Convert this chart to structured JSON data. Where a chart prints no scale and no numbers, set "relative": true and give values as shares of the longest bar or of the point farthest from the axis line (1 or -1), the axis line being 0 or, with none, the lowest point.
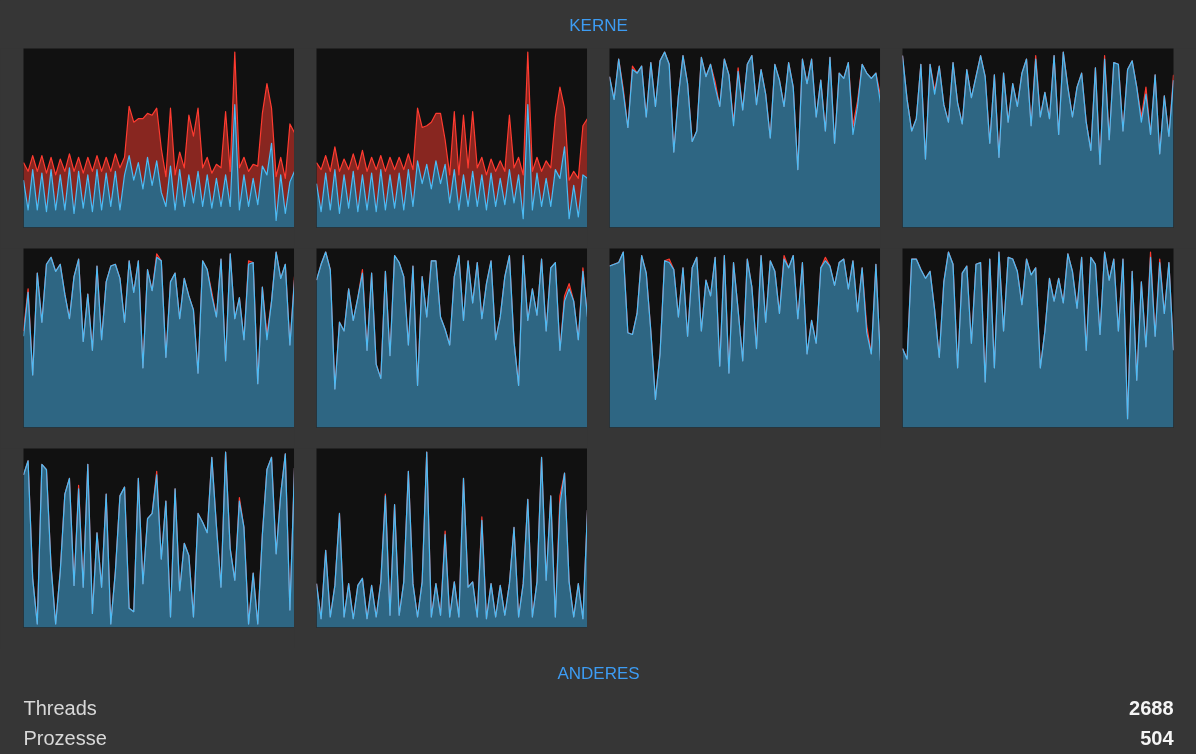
{
  "chart_data": [
    {
      "type": "other",
      "title": "KERNE"
    },
    {
      "type": "area",
      "stacked": true,
      "relative": true,
      "categories": [
        null,
        null,
        null,
        null,
        null,
        null,
        null,
        null,
        null,
        null,
        null,
        null,
        null,
        null,
        null,
        null,
        null,
        null,
        null,
        null,
        null,
        null,
        null,
        null,
        null,
        null,
        null,
        null,
        null,
        null,
        null,
        null,
        null,
        null,
        null,
        null,
        null,
        null,
        null,
        null,
        null,
        null,
        null,
        null,
        null,
        null,
        null,
        null,
        null,
        null,
        null,
        null,
        null,
        null,
        null,
        null,
        null,
        null,
        null,
        null
      ],
      "series": [
        {
          "color": "#4cbcf5",
          "values": [
            0.27,
            0.1,
            0.33,
            0.1,
            0.31,
            0.09,
            0.33,
            0.1,
            0.3,
            0.1,
            0.34,
            0.08,
            0.32,
            0.11,
            0.3,
            0.09,
            0.33,
            0.1,
            0.31,
            0.12,
            0.32,
            0.1,
            0.3,
            0.41,
            0.27,
            0.37,
            0.22,
            0.4,
            0.24,
            0.38,
            0.2,
            0.12,
            0.35,
            0.1,
            0.33,
            0.12,
            0.3,
            0.14,
            0.32,
            0.12,
            0.3,
            0.11,
            0.28,
            0.12,
            0.3,
            0.12,
            0.7,
            0.1,
            0.3,
            0.12,
            0.28,
            0.13,
            0.35,
            0.3,
            0.48,
            0.04,
            0.3,
            0.08,
            0.26,
            0.32
          ]
        },
        {
          "color": "#ff3b30",
          "values": [
            0.1,
            0.22,
            0.08,
            0.22,
            0.1,
            0.22,
            0.07,
            0.2,
            0.09,
            0.22,
            0.08,
            0.24,
            0.08,
            0.2,
            0.1,
            0.23,
            0.08,
            0.22,
            0.09,
            0.2,
            0.1,
            0.24,
            0.1,
            0.28,
            0.33,
            0.25,
            0.4,
            0.25,
            0.4,
            0.3,
            0.25,
            0.17,
            0.33,
            0.2,
            0.1,
            0.22,
            0.34,
            0.38,
            0.36,
            0.22,
            0.1,
            0.2,
            0.08,
            0.22,
            0.36,
            0.2,
            0.3,
            0.24,
            0.1,
            0.2,
            0.08,
            0.22,
            0.3,
            0.52,
            0.2,
            0.25,
            0.1,
            0.2,
            0.33,
            0.22
          ]
        }
      ]
    },
    {
      "type": "area",
      "stacked": true,
      "relative": true,
      "categories": [
        null,
        null,
        null,
        null,
        null,
        null,
        null,
        null,
        null,
        null,
        null,
        null,
        null,
        null,
        null,
        null,
        null,
        null,
        null,
        null,
        null,
        null,
        null,
        null,
        null,
        null,
        null,
        null,
        null,
        null,
        null,
        null,
        null,
        null,
        null,
        null,
        null,
        null,
        null,
        null,
        null,
        null,
        null,
        null,
        null,
        null,
        null,
        null,
        null,
        null,
        null,
        null,
        null,
        null,
        null,
        null,
        null,
        null,
        null,
        null
      ],
      "series": [
        {
          "color": "#4cbcf5",
          "values": [
            0.25,
            0.09,
            0.31,
            0.1,
            0.33,
            0.08,
            0.3,
            0.11,
            0.32,
            0.09,
            0.3,
            0.1,
            0.31,
            0.09,
            0.33,
            0.1,
            0.3,
            0.11,
            0.31,
            0.1,
            0.33,
            0.12,
            0.38,
            0.25,
            0.36,
            0.22,
            0.38,
            0.25,
            0.36,
            0.14,
            0.33,
            0.1,
            0.3,
            0.12,
            0.32,
            0.12,
            0.3,
            0.1,
            0.31,
            0.12,
            0.28,
            0.13,
            0.33,
            0.14,
            0.3,
            0.05,
            0.7,
            0.1,
            0.31,
            0.12,
            0.28,
            0.12,
            0.33,
            0.28,
            0.46,
            0.05,
            0.24,
            0.06,
            0.3,
            0.28
          ]
        },
        {
          "color": "#ff3b30",
          "values": [
            0.12,
            0.24,
            0.1,
            0.22,
            0.13,
            0.24,
            0.09,
            0.22,
            0.1,
            0.24,
            0.14,
            0.22,
            0.09,
            0.24,
            0.08,
            0.22,
            0.1,
            0.22,
            0.09,
            0.23,
            0.09,
            0.21,
            0.3,
            0.32,
            0.22,
            0.38,
            0.27,
            0.4,
            0.14,
            0.16,
            0.33,
            0.2,
            0.34,
            0.22,
            0.34,
            0.22,
            0.1,
            0.2,
            0.08,
            0.2,
            0.1,
            0.19,
            0.31,
            0.2,
            0.1,
            0.25,
            0.3,
            0.22,
            0.09,
            0.2,
            0.1,
            0.22,
            0.3,
            0.52,
            0.22,
            0.22,
            0.08,
            0.22,
            0.28,
            0.34
          ]
        }
      ]
    },
    {
      "type": "area",
      "stacked": true,
      "relative": true,
      "categories": [
        null,
        null,
        null,
        null,
        null,
        null,
        null,
        null,
        null,
        null,
        null,
        null,
        null,
        null,
        null,
        null,
        null,
        null,
        null,
        null,
        null,
        null,
        null,
        null,
        null,
        null,
        null,
        null,
        null,
        null,
        null,
        null,
        null,
        null,
        null,
        null,
        null,
        null,
        null,
        null,
        null,
        null,
        null,
        null,
        null,
        null,
        null,
        null,
        null,
        null,
        null,
        null,
        null,
        null,
        null,
        null,
        null,
        null,
        null,
        null
      ],
      "series": [
        {
          "color": "#4cbcf5",
          "values": [
            0.86,
            0.73,
            0.96,
            0.77,
            0.57,
            0.9,
            0.88,
            0.92,
            0.63,
            0.94,
            0.69,
            0.95,
            1.0,
            0.93,
            0.43,
            0.75,
            0.98,
            0.82,
            0.49,
            0.55,
            0.97,
            0.86,
            0.93,
            0.8,
            0.69,
            0.96,
            0.87,
            0.58,
            0.89,
            0.67,
            0.93,
            0.98,
            0.7,
            0.9,
            0.76,
            0.51,
            0.93,
            0.84,
            0.69,
            0.94,
            0.8,
            0.33,
            0.96,
            0.82,
            0.96,
            0.63,
            0.84,
            0.55,
            0.97,
            0.48,
            0.88,
            0.85,
            0.94,
            0.53,
            0.69,
            0.93,
            0.88,
            0.85,
            0.88,
            0.71
          ]
        },
        {
          "color": "#ff3b30",
          "values": [
            0,
            0,
            0,
            0.02,
            0,
            0.02,
            0,
            0,
            0,
            0,
            0,
            0,
            0,
            0,
            0,
            0,
            0,
            0,
            0,
            0,
            0,
            0,
            0,
            0.03,
            0,
            0,
            0,
            0.02,
            0.02,
            0,
            0,
            0,
            0,
            0,
            0,
            0,
            0,
            0,
            0,
            0,
            0,
            0,
            0,
            0,
            0,
            0,
            0,
            0,
            0,
            0,
            0,
            0,
            0,
            0.05,
            0.03,
            0,
            0,
            0,
            0,
            0.04
          ]
        }
      ]
    },
    {
      "type": "area",
      "stacked": true,
      "relative": true,
      "categories": [
        null,
        null,
        null,
        null,
        null,
        null,
        null,
        null,
        null,
        null,
        null,
        null,
        null,
        null,
        null,
        null,
        null,
        null,
        null,
        null,
        null,
        null,
        null,
        null,
        null,
        null,
        null,
        null,
        null,
        null,
        null,
        null,
        null,
        null,
        null,
        null,
        null,
        null,
        null,
        null,
        null,
        null,
        null,
        null,
        null,
        null,
        null,
        null,
        null,
        null,
        null,
        null,
        null,
        null,
        null,
        null,
        null,
        null,
        null,
        null
      ],
      "series": [
        {
          "color": "#4cbcf5",
          "values": [
            0.98,
            0.73,
            0.55,
            0.62,
            0.93,
            0.39,
            0.93,
            0.76,
            0.92,
            0.7,
            0.6,
            0.94,
            0.71,
            0.59,
            0.9,
            0.74,
            0.86,
            0.98,
            0.86,
            0.48,
            0.87,
            0.4,
            0.88,
            0.6,
            0.82,
            0.69,
            0.88,
            0.96,
            0.58,
            0.96,
            0.63,
            0.77,
            0.62,
            0.98,
            0.53,
            1.0,
            0.8,
            0.63,
            0.8,
            0.88,
            0.6,
            0.44,
            0.91,
            0.36,
            0.96,
            0.5,
            0.94,
            0.93,
            0.55,
            0.9,
            0.95,
            0.8,
            0.6,
            0.76,
            0.53,
            0.87,
            0.42,
            0.75,
            0.52,
            0.84
          ]
        },
        {
          "color": "#ff3b30",
          "values": [
            0,
            0,
            0,
            0,
            0,
            0,
            0,
            0.02,
            0,
            0,
            0,
            0,
            0,
            0,
            0,
            0,
            0,
            0,
            0,
            0,
            0,
            0,
            0,
            0,
            0,
            0,
            0,
            0,
            0,
            0.02,
            0,
            0,
            0,
            0,
            0,
            0,
            0,
            0,
            0,
            0,
            0,
            0,
            0,
            0,
            0.02,
            0,
            0,
            0,
            0,
            0,
            0,
            0,
            0.03,
            0.04,
            0,
            0,
            0,
            0,
            0,
            0.03
          ]
        }
      ]
    },
    {
      "type": "area",
      "stacked": true,
      "relative": true,
      "categories": [
        null,
        null,
        null,
        null,
        null,
        null,
        null,
        null,
        null,
        null,
        null,
        null,
        null,
        null,
        null,
        null,
        null,
        null,
        null,
        null,
        null,
        null,
        null,
        null,
        null,
        null,
        null,
        null,
        null,
        null,
        null,
        null,
        null,
        null,
        null,
        null,
        null,
        null,
        null,
        null,
        null,
        null,
        null,
        null,
        null,
        null,
        null,
        null,
        null,
        null,
        null,
        null,
        null,
        null,
        null,
        null,
        null,
        null,
        null,
        null
      ],
      "series": [
        {
          "color": "#4cbcf5",
          "values": [
            0.52,
            0.77,
            0.3,
            0.88,
            0.6,
            0.93,
            0.97,
            0.89,
            0.93,
            0.76,
            0.62,
            0.86,
            0.96,
            0.49,
            0.76,
            0.44,
            0.92,
            0.5,
            0.83,
            0.92,
            0.93,
            0.85,
            0.6,
            0.95,
            0.77,
            0.95,
            0.34,
            0.9,
            0.78,
            0.97,
            0.95,
            0.4,
            0.83,
            0.88,
            0.62,
            0.85,
            0.75,
            0.67,
            0.31,
            0.95,
            0.9,
            0.75,
            0.63,
            0.96,
            0.38,
            0.99,
            0.62,
            0.74,
            0.5,
            0.93,
            0.94,
            0.25,
            0.8,
            0.5,
            0.72,
            1.0,
            0.85,
            0.93,
            0.47,
            0.84
          ]
        },
        {
          "color": "#ff3b30",
          "values": [
            0.03,
            0.02,
            0,
            0,
            0,
            0,
            0,
            0,
            0,
            0,
            0,
            0,
            0,
            0,
            0,
            0,
            0,
            0,
            0,
            0,
            0,
            0,
            0,
            0,
            0,
            0,
            0,
            0,
            0,
            0.02,
            0,
            0,
            0,
            0,
            0,
            0,
            0,
            0,
            0,
            0,
            0,
            0.02,
            0,
            0,
            0,
            0,
            0,
            0,
            0,
            0.02,
            0,
            0,
            0,
            0.03,
            0,
            0,
            0,
            0,
            0,
            0.02
          ]
        }
      ]
    },
    {
      "type": "area",
      "stacked": true,
      "relative": true,
      "categories": [
        null,
        null,
        null,
        null,
        null,
        null,
        null,
        null,
        null,
        null,
        null,
        null,
        null,
        null,
        null,
        null,
        null,
        null,
        null,
        null,
        null,
        null,
        null,
        null,
        null,
        null,
        null,
        null,
        null,
        null,
        null,
        null,
        null,
        null,
        null,
        null,
        null,
        null,
        null,
        null,
        null,
        null,
        null,
        null,
        null,
        null,
        null,
        null,
        null,
        null,
        null,
        null,
        null,
        null,
        null,
        null,
        null,
        null,
        null,
        null
      ],
      "series": [
        {
          "color": "#4cbcf5",
          "values": [
            0.84,
            0.93,
            1.0,
            0.9,
            0.22,
            0.6,
            0.55,
            0.79,
            0.61,
            0.74,
            0.88,
            0.44,
            0.88,
            0.36,
            0.28,
            0.89,
            0.41,
            0.98,
            0.94,
            0.86,
            0.47,
            0.92,
            0.24,
            0.86,
            0.63,
            0.95,
            0.95,
            0.63,
            0.56,
            0.47,
            0.86,
            0.98,
            0.61,
            0.95,
            0.71,
            0.94,
            0.62,
            0.82,
            0.95,
            0.5,
            0.63,
            0.86,
            0.98,
            0.49,
            0.24,
            0.98,
            0.61,
            0.79,
            0.64,
            0.96,
            0.55,
            0.91,
            0.94,
            0.44,
            0.72,
            0.79,
            0.72,
            0.5,
            0.89,
            0.63
          ]
        },
        {
          "color": "#ff3b30",
          "values": [
            0,
            0,
            0,
            0,
            0,
            0,
            0,
            0,
            0,
            0,
            0.02,
            0,
            0,
            0,
            0,
            0,
            0,
            0,
            0,
            0,
            0,
            0,
            0,
            0,
            0,
            0,
            0,
            0,
            0,
            0,
            0,
            0,
            0,
            0,
            0,
            0,
            0,
            0,
            0,
            0,
            0,
            0,
            0,
            0,
            0,
            0,
            0,
            0,
            0,
            0,
            0,
            0,
            0,
            0,
            0.03,
            0.03,
            0,
            0,
            0.02,
            0
          ]
        }
      ]
    },
    {
      "type": "area",
      "stacked": true,
      "relative": true,
      "categories": [
        null,
        null,
        null,
        null,
        null,
        null,
        null,
        null,
        null,
        null,
        null,
        null,
        null,
        null,
        null,
        null,
        null,
        null,
        null,
        null,
        null,
        null,
        null,
        null,
        null,
        null,
        null,
        null,
        null,
        null,
        null,
        null,
        null,
        null,
        null,
        null,
        null,
        null,
        null,
        null,
        null,
        null,
        null,
        null,
        null,
        null,
        null,
        null,
        null,
        null,
        null,
        null,
        null,
        null,
        null,
        null,
        null,
        null,
        null,
        null
      ],
      "series": [
        {
          "color": "#4cbcf5",
          "values": [
            0.92,
            0.93,
            0.94,
            1.0,
            0.54,
            0.53,
            0.65,
            0.98,
            0.88,
            0.55,
            0.16,
            0.42,
            0.95,
            0.94,
            0.9,
            0.63,
            0.91,
            0.52,
            0.91,
            0.97,
            0.55,
            0.84,
            0.75,
            0.97,
            0.35,
            0.98,
            0.31,
            0.94,
            0.67,
            0.38,
            0.96,
            0.8,
            0.45,
            0.98,
            0.6,
            0.95,
            0.89,
            0.65,
            0.96,
            0.91,
            0.98,
            0.62,
            0.94,
            0.42,
            0.61,
            0.48,
            0.91,
            0.95,
            0.92,
            0.81,
            0.94,
            0.96,
            0.79,
            0.95,
            0.66,
            0.91,
            0.54,
            0.42,
            0.93,
            0.38
          ]
        },
        {
          "color": "#ff3b30",
          "values": [
            0,
            0,
            0,
            0,
            0,
            0,
            0,
            0,
            0,
            0,
            0,
            0,
            0,
            0.02,
            0,
            0,
            0,
            0,
            0,
            0,
            0,
            0,
            0,
            0,
            0,
            0,
            0,
            0,
            0,
            0,
            0,
            0,
            0,
            0,
            0,
            0,
            0,
            0,
            0.02,
            0,
            0,
            0,
            0,
            0,
            0,
            0,
            0,
            0.02,
            0,
            0,
            0,
            0,
            0,
            0,
            0,
            0,
            0.04,
            0,
            0,
            0
          ]
        }
      ]
    },
    {
      "type": "area",
      "stacked": true,
      "relative": true,
      "categories": [
        null,
        null,
        null,
        null,
        null,
        null,
        null,
        null,
        null,
        null,
        null,
        null,
        null,
        null,
        null,
        null,
        null,
        null,
        null,
        null,
        null,
        null,
        null,
        null,
        null,
        null,
        null,
        null,
        null,
        null,
        null,
        null,
        null,
        null,
        null,
        null,
        null,
        null,
        null,
        null,
        null,
        null,
        null,
        null,
        null,
        null,
        null,
        null,
        null,
        null,
        null,
        null,
        null,
        null,
        null,
        null,
        null,
        null,
        null,
        null
      ],
      "series": [
        {
          "color": "#4cbcf5",
          "values": [
            0.45,
            0.39,
            0.96,
            0.96,
            0.9,
            0.85,
            0.89,
            0.67,
            0.4,
            0.83,
            1.0,
            0.93,
            0.34,
            0.88,
            0.92,
            0.48,
            0.93,
            0.94,
            0.26,
            0.96,
            0.34,
            1.0,
            0.55,
            0.97,
            0.96,
            0.89,
            0.7,
            0.96,
            0.87,
            0.91,
            0.34,
            0.55,
            0.85,
            0.72,
            0.85,
            0.71,
            0.99,
            0.89,
            0.68,
            0.97,
            0.44,
            0.97,
            0.93,
            0.53,
            1.0,
            0.84,
            0.96,
            0.55,
            0.96,
            0.05,
            0.89,
            0.27,
            0.83,
            0.46,
            0.97,
            0.52,
            0.94,
            0.65,
            0.94,
            0.44
          ]
        },
        {
          "color": "#ff3b30",
          "values": [
            0,
            0,
            0,
            0,
            0,
            0,
            0,
            0,
            0,
            0,
            0,
            0,
            0,
            0,
            0,
            0,
            0,
            0,
            0,
            0,
            0,
            0,
            0,
            0,
            0,
            0,
            0,
            0,
            0,
            0,
            0,
            0,
            0,
            0,
            0,
            0,
            0,
            0,
            0,
            0,
            0,
            0,
            0,
            0,
            0,
            0,
            0,
            0,
            0,
            0,
            0,
            0,
            0,
            0,
            0.03,
            0,
            0.02,
            0,
            0,
            0
          ]
        }
      ]
    },
    {
      "type": "area",
      "stacked": true,
      "relative": true,
      "categories": [
        null,
        null,
        null,
        null,
        null,
        null,
        null,
        null,
        null,
        null,
        null,
        null,
        null,
        null,
        null,
        null,
        null,
        null,
        null,
        null,
        null,
        null,
        null,
        null,
        null,
        null,
        null,
        null,
        null,
        null,
        null,
        null,
        null,
        null,
        null,
        null,
        null,
        null,
        null,
        null,
        null,
        null,
        null,
        null,
        null,
        null,
        null,
        null,
        null,
        null,
        null,
        null,
        null,
        null,
        null,
        null,
        null,
        null,
        null,
        null
      ],
      "series": [
        {
          "color": "#4cbcf5",
          "values": [
            0.87,
            0.95,
            0.28,
            0.02,
            0.93,
            0.9,
            0.35,
            0.02,
            0.32,
            0.76,
            0.85,
            0.24,
            0.79,
            0.23,
            0.93,
            0.08,
            0.54,
            0.23,
            0.76,
            0.02,
            0.32,
            0.75,
            0.8,
            0.11,
            0.09,
            0.85,
            0.25,
            0.62,
            0.65,
            0.87,
            0.39,
            0.72,
            0.06,
            0.79,
            0.21,
            0.48,
            0.41,
            0.06,
            0.65,
            0.6,
            0.54,
            0.97,
            0.58,
            0.23,
            1.0,
            0.45,
            0.27,
            0.72,
            0.57,
            0.02,
            0.31,
            0.02,
            0.53,
            0.9,
            0.97,
            0.42,
            0.76,
            0.99,
            0.1,
            0.91
          ]
        },
        {
          "color": "#ff3b30",
          "values": [
            0,
            0,
            0,
            0,
            0,
            0,
            0,
            0,
            0,
            0,
            0,
            0,
            0.02,
            0,
            0,
            0,
            0,
            0,
            0,
            0,
            0,
            0,
            0,
            0,
            0,
            0,
            0,
            0,
            0,
            0.02,
            0,
            0,
            0,
            0,
            0,
            0,
            0,
            0,
            0,
            0,
            0,
            0,
            0,
            0,
            0,
            0,
            0,
            0.02,
            0,
            0,
            0,
            0,
            0,
            0,
            0,
            0,
            0,
            0,
            0,
            0
          ]
        }
      ]
    },
    {
      "type": "area",
      "stacked": true,
      "relative": true,
      "categories": [
        null,
        null,
        null,
        null,
        null,
        null,
        null,
        null,
        null,
        null,
        null,
        null,
        null,
        null,
        null,
        null,
        null,
        null,
        null,
        null,
        null,
        null,
        null,
        null,
        null,
        null,
        null,
        null,
        null,
        null,
        null,
        null,
        null,
        null,
        null,
        null,
        null,
        null,
        null,
        null,
        null,
        null,
        null,
        null,
        null,
        null,
        null,
        null,
        null,
        null,
        null,
        null,
        null,
        null,
        null,
        null,
        null,
        null,
        null,
        null
      ],
      "series": [
        {
          "color": "#4cbcf5",
          "values": [
            0.25,
            0.05,
            0.44,
            0.06,
            0.24,
            0.65,
            0.06,
            0.25,
            0.05,
            0.24,
            0.28,
            0.05,
            0.24,
            0.06,
            0.26,
            0.75,
            0.07,
            0.7,
            0.07,
            0.26,
            0.89,
            0.25,
            0.06,
            0.26,
            1.0,
            0.06,
            0.25,
            0.07,
            0.53,
            0.06,
            0.26,
            0.06,
            0.85,
            0.23,
            0.26,
            0.06,
            0.61,
            0.05,
            0.25,
            0.06,
            0.24,
            0.07,
            0.25,
            0.57,
            0.06,
            0.25,
            0.73,
            0.06,
            0.26,
            0.97,
            0.27,
            0.75,
            0.06,
            0.7,
            0.88,
            0.26,
            0.06,
            0.25,
            0.05,
            0.67
          ]
        },
        {
          "color": "#ff3b30",
          "values": [
            0,
            0,
            0,
            0,
            0,
            0,
            0,
            0,
            0,
            0,
            0,
            0,
            0,
            0,
            0,
            0.01,
            0,
            0,
            0,
            0,
            0,
            0,
            0,
            0,
            0,
            0,
            0,
            0,
            0.02,
            0,
            0,
            0,
            0,
            0,
            0,
            0,
            0.02,
            0,
            0,
            0,
            0,
            0,
            0,
            0,
            0,
            0,
            0,
            0,
            0,
            0,
            0,
            0,
            0,
            0.05,
            0,
            0,
            0,
            0,
            0,
            0
          ]
        }
      ]
    },
    {
      "type": "other",
      "title": "ANDERES",
      "categories": [
        "Threads",
        "Prozesse"
      ],
      "values": [
        2688,
        504
      ],
      "data_labels": true
    }
  ]
}
